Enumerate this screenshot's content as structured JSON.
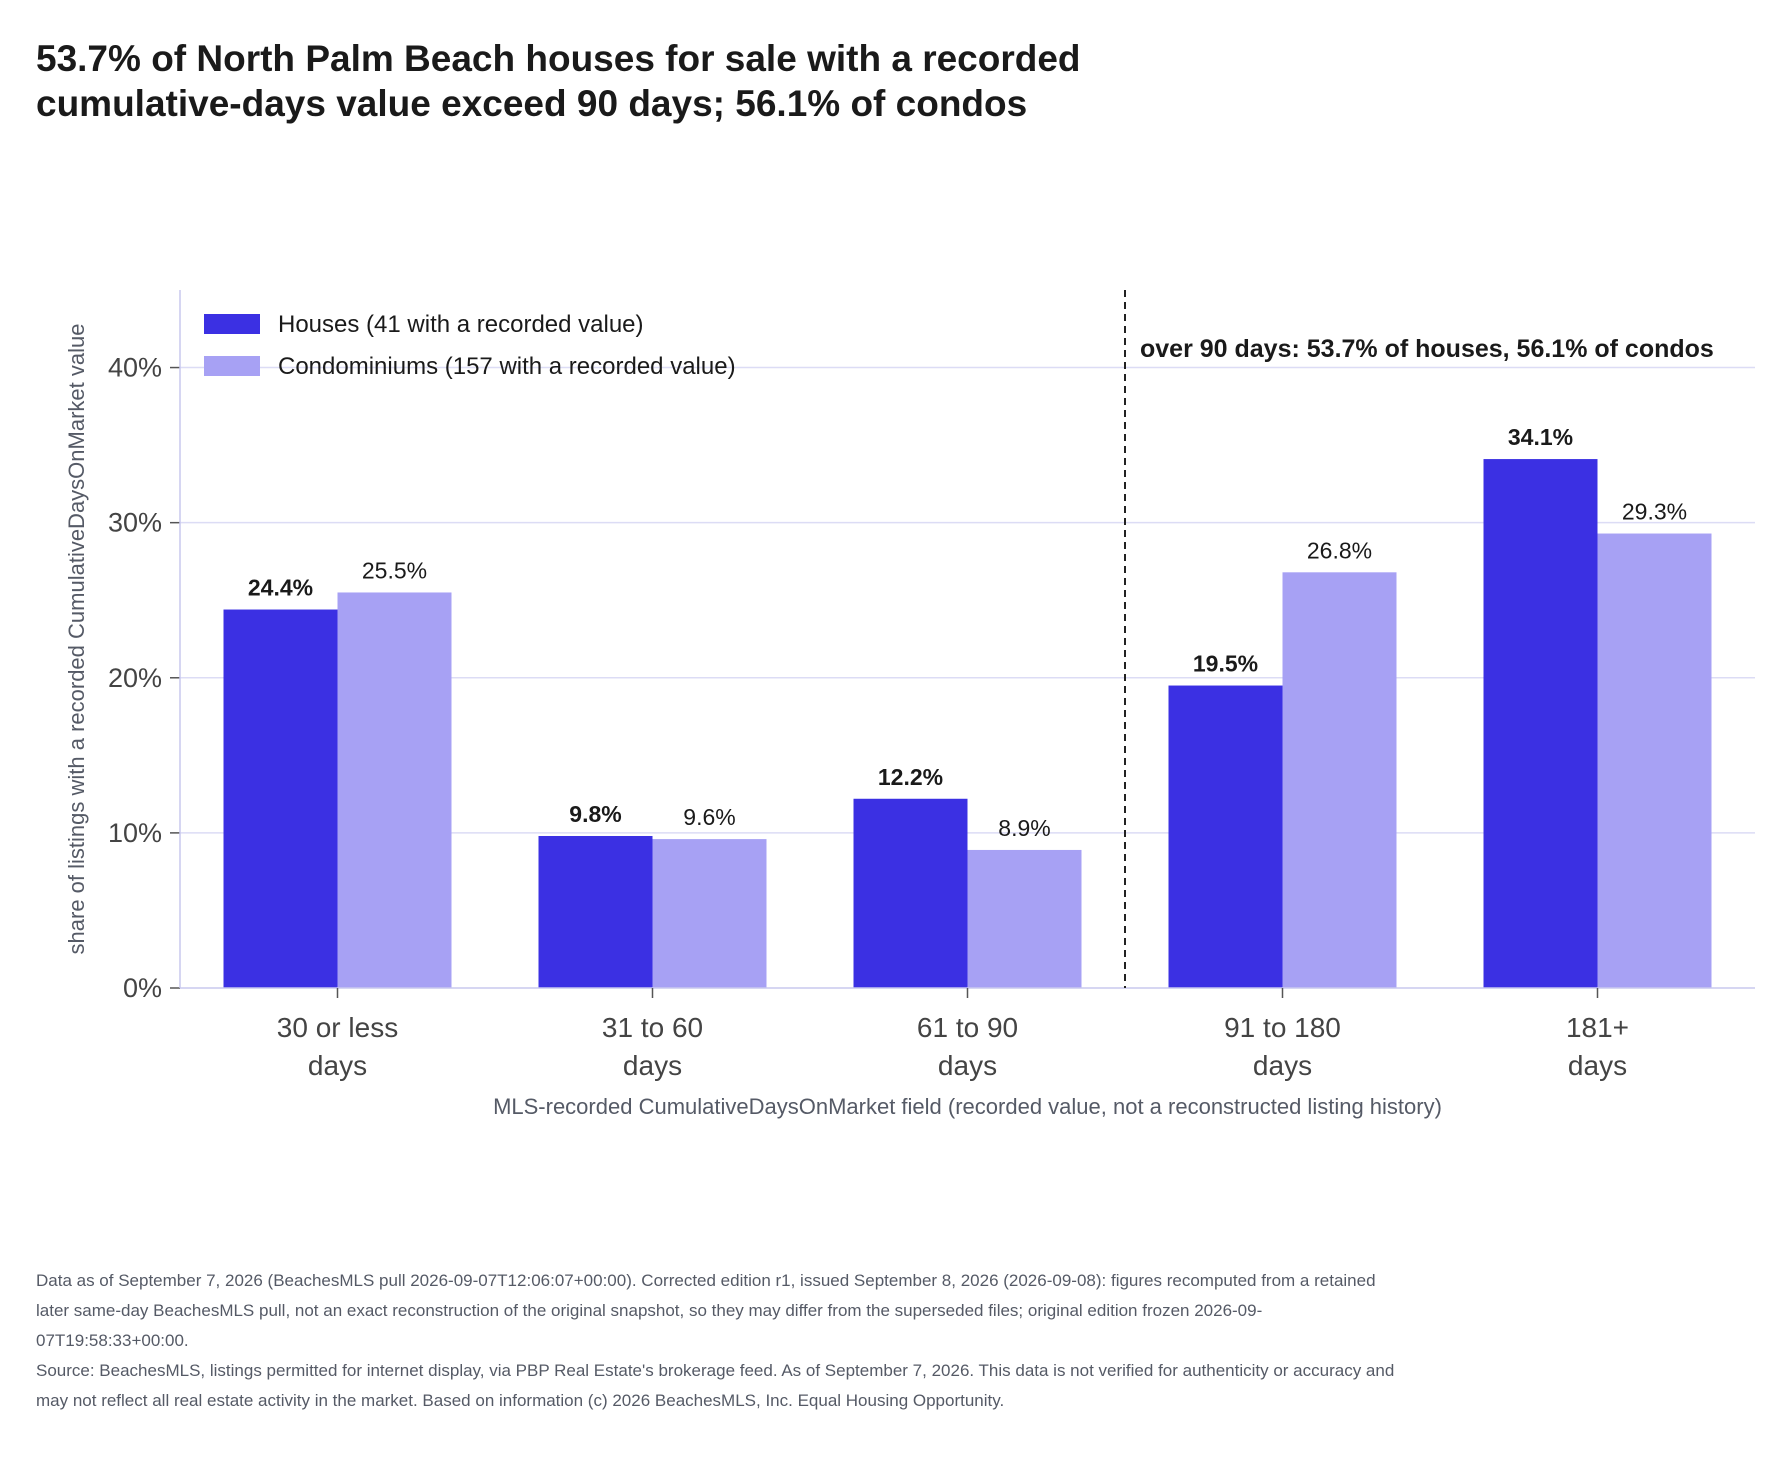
{
  "title": "53.7% of North Palm Beach houses for sale with a recorded cumulative-days value exceed 90 days; 56.1% of condos",
  "chart_data": {
    "type": "bar",
    "categories": [
      [
        "30 or less",
        "days"
      ],
      [
        "31 to 60",
        "days"
      ],
      [
        "61 to 90",
        "days"
      ],
      [
        "91 to 180",
        "days"
      ],
      [
        "181+",
        "days"
      ]
    ],
    "series": [
      {
        "name": "Houses (41 with a recorded value)",
        "values": [
          24.4,
          9.8,
          12.2,
          19.5,
          34.1
        ],
        "labels": [
          "24.4%",
          "9.8%",
          "12.2%",
          "19.5%",
          "34.1%"
        ],
        "color": "#3b30e3",
        "label_weight": "bold"
      },
      {
        "name": "Condominiums (157 with a recorded value)",
        "values": [
          25.5,
          9.6,
          8.9,
          26.8,
          29.3
        ],
        "labels": [
          "25.5%",
          "9.6%",
          "8.9%",
          "26.8%",
          "29.3%"
        ],
        "color": "#a7a1f4",
        "label_weight": "normal"
      }
    ],
    "ylabel": "share of listings with a recorded CumulativeDaysOnMarket value",
    "xlabel": "MLS-recorded CumulativeDaysOnMarket field (recorded value, not a reconstructed listing history)",
    "ylim": [
      0,
      45
    ],
    "yticks": [
      0,
      10,
      20,
      30,
      40
    ],
    "ytick_labels": [
      "0%",
      "10%",
      "20%",
      "30%",
      "40%"
    ],
    "grid": true,
    "legend_position": "top-left",
    "threshold": {
      "between_categories": [
        2,
        3
      ],
      "style": "dashed",
      "annotation": "over 90 days: 53.7% of houses, 56.1% of condos"
    }
  },
  "footnote": {
    "data_note": "Data as of September 7, 2026 (BeachesMLS pull 2026-09-07T12:06:07+00:00). Corrected edition r1, issued September 8, 2026 (2026-09-08): figures recomputed from a retained later same-day BeachesMLS pull, not an exact reconstruction of the original snapshot, so they may differ from the superseded files; original edition frozen 2026-09-07T19:58:33+00:00.",
    "source": "Source: BeachesMLS, listings permitted for internet display, via PBP Real Estate's brokerage feed. As of September 7, 2026. This data is not verified for authenticity or accuracy and may not reflect all real estate activity in the market. Based on information (c) 2026 BeachesMLS, Inc. Equal Housing Opportunity."
  },
  "colors": {
    "grid": "#dcdcf5",
    "axis": "#c8c8ee",
    "text": "#1a1a1a",
    "muted": "#555a66"
  }
}
